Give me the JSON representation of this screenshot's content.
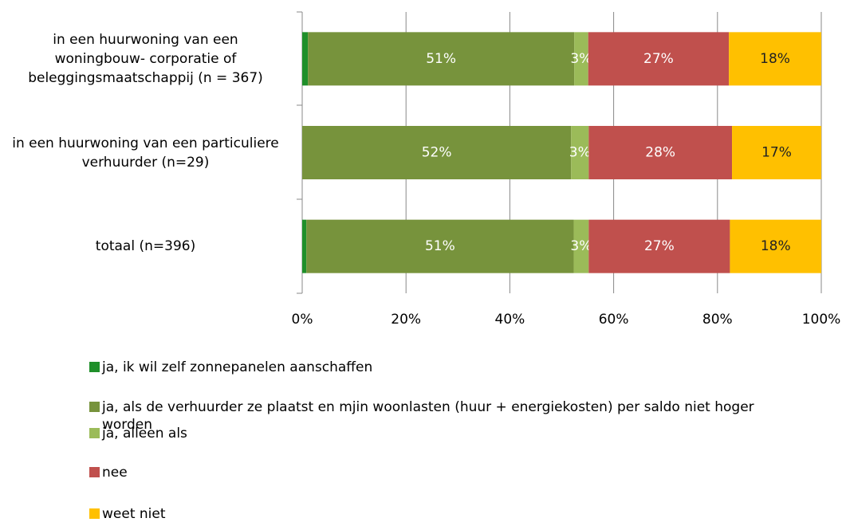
{
  "chart_data": {
    "type": "stacked-bar-horizontal",
    "categories": [
      "in een huurwoning van een woningbouw- corporatie of beleggingsmaatschappij (n = 367)",
      "in een huurwoning van een particuliere verhuurder (n=29)",
      "totaal (n=396)"
    ],
    "series": [
      {
        "name": "ja, ik wil zelf zonnepanelen aanschaffen",
        "color": "#1f8f2a",
        "values": [
          1.1,
          0,
          0.8
        ],
        "value_labels": [
          null,
          null,
          null
        ]
      },
      {
        "name": "ja, als de verhuurder ze plaatst en mjin woonlasten (huur + energiekosten) per saldo niet hoger worden",
        "color": "#77933c",
        "values": [
          51.3,
          51.8,
          51.5
        ],
        "value_labels": [
          "51%",
          "52%",
          "51%"
        ]
      },
      {
        "name": "ja, alleen als",
        "color": "#9bbb59",
        "values": [
          2.7,
          3.4,
          2.9
        ],
        "value_labels": [
          "3%",
          "3%",
          "3%"
        ]
      },
      {
        "name": "nee",
        "color": "#c0504d",
        "values": [
          27.1,
          27.6,
          27.2
        ],
        "value_labels": [
          "27%",
          "28%",
          "27%"
        ]
      },
      {
        "name": "weet niet",
        "color": "#ffc000",
        "values": [
          17.8,
          17.2,
          17.6
        ],
        "value_labels": [
          "18%",
          "17%",
          "18%"
        ]
      }
    ],
    "xlim": [
      0,
      100
    ],
    "xticks": [
      {
        "value": 0,
        "label": "0%"
      },
      {
        "value": 20,
        "label": "20%"
      },
      {
        "value": 40,
        "label": "40%"
      },
      {
        "value": 60,
        "label": "60%"
      },
      {
        "value": 80,
        "label": "80%"
      },
      {
        "value": 100,
        "label": "100%"
      }
    ],
    "grid": true
  }
}
